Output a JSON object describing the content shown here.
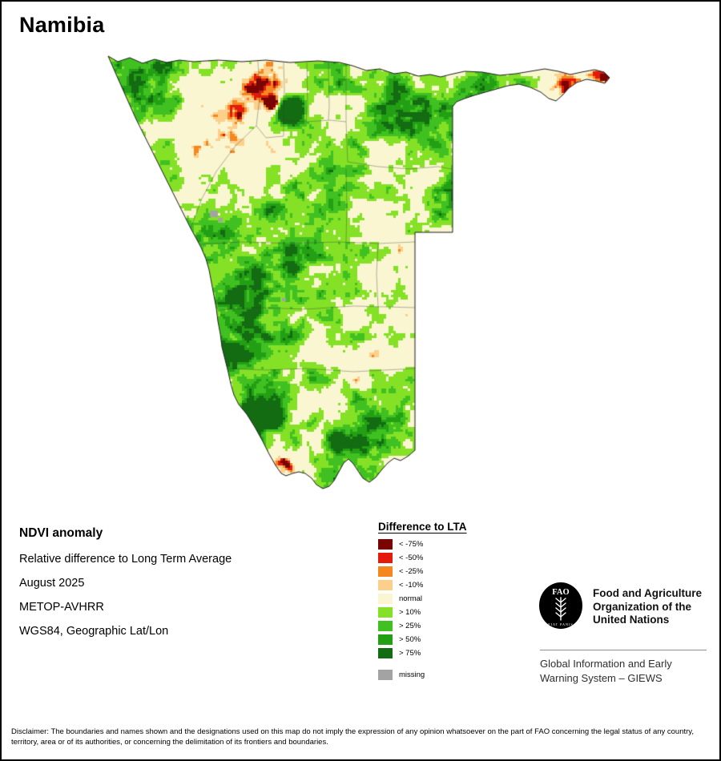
{
  "title": "Namibia",
  "legend": {
    "title": "Difference to LTA",
    "items": [
      {
        "label": "< -75%",
        "color": "#7a0403"
      },
      {
        "label": "< -50%",
        "color": "#e41a0c"
      },
      {
        "label": "< -25%",
        "color": "#f58721"
      },
      {
        "label": "< -10%",
        "color": "#fccf8b"
      },
      {
        "label": "normal",
        "color": "#faf6d2"
      },
      {
        "label": "> 10%",
        "color": "#84e126"
      },
      {
        "label": "> 25%",
        "color": "#40c121"
      },
      {
        "label": "> 50%",
        "color": "#239f14"
      },
      {
        "label": "> 75%",
        "color": "#136c12"
      }
    ],
    "missing": {
      "label": "missing",
      "color": "#a3a3a3"
    }
  },
  "info": {
    "heading": "NDVI anomaly",
    "subtitle": "Relative difference to Long Term Average",
    "date": "August 2025",
    "sensor": "METOP-AVHRR",
    "projection": "WGS84, Geographic Lat/Lon"
  },
  "fao": {
    "logo_acronym": "FAO",
    "logo_motto": "FIAT PANIS",
    "org_name": "Food and Agriculture Organization of the United Nations",
    "program": "Global Information and Early Warning System – GIEWS"
  },
  "disclaimer": "Disclaimer: The boundaries and names shown and the designations used on this map do not imply the expression of any opinion whatsoever on the part of FAO concerning the legal status of any country, territory, area or of its authorities, or concerning the delimitation of its frontiers and boundaries."
}
